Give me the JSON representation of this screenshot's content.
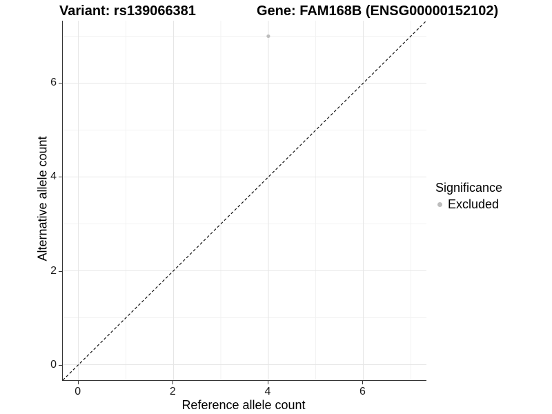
{
  "titles": {
    "left": "Variant: rs139066381",
    "right": "Gene: FAM168B (ENSG00000152102)"
  },
  "colors": {
    "excluded_gray": "#bdbdbd",
    "axis_line": "#333333",
    "grid_major": "#e6e6e6",
    "grid_minor": "#f2f2f2",
    "reference_line": "#111111",
    "background": "#ffffff",
    "text": "#000000"
  },
  "chart_data": {
    "type": "scatter",
    "titles": {
      "left": "Variant: rs139066381",
      "right": "Gene: FAM168B (ENSG00000152102)"
    },
    "xlabel": "Reference allele count",
    "ylabel": "Alternative allele count",
    "xlim": [
      -0.33,
      7.33
    ],
    "ylim": [
      -0.33,
      7.33
    ],
    "x_major_ticks": [
      0,
      2,
      4,
      6
    ],
    "y_major_ticks": [
      0,
      2,
      4,
      6
    ],
    "x_minor_ticks": [
      1,
      3,
      5,
      7
    ],
    "y_minor_ticks": [
      1,
      3,
      5,
      7
    ],
    "grid": true,
    "points": [
      {
        "x": 4,
        "y": 7,
        "significance": "Excluded",
        "color": "#bdbdbd",
        "radius": 2.6
      }
    ],
    "reference_line": {
      "type": "identity",
      "from": [
        -0.33,
        -0.33
      ],
      "to": [
        7.33,
        7.33
      ],
      "style": "dashed",
      "color": "#111111"
    },
    "legend": {
      "title": "Significance",
      "position": "right",
      "entries": [
        {
          "label": "Excluded",
          "color": "#bdbdbd",
          "marker": "circle"
        }
      ]
    }
  }
}
